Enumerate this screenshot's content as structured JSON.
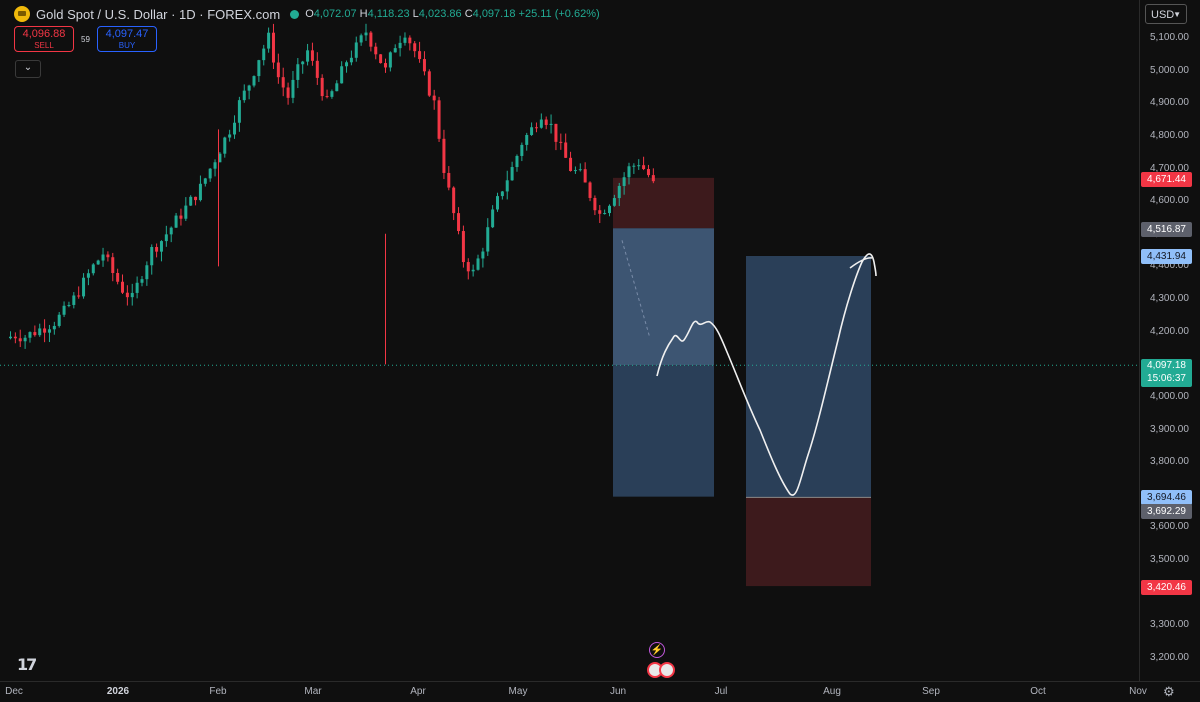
{
  "header": {
    "title": "Gold Spot / U.S. Dollar · 1D · FOREX.com",
    "ohlc": {
      "o_label": "O",
      "o": "4,072.07",
      "h_label": "H",
      "h": "4,118.23",
      "l_label": "L",
      "l": "4,023.86",
      "c_label": "C",
      "c": "4,097.18",
      "change": "+25.11 (+0.62%)"
    }
  },
  "trade": {
    "sell_price": "4,096.88",
    "sell_label": "SELL",
    "spread": "59",
    "buy_price": "4,097.47",
    "buy_label": "BUY"
  },
  "currency": "USD",
  "price_axis": {
    "ticks": [
      "5,100.00",
      "5,000.00",
      "4,900.00",
      "4,800.00",
      "4,700.00",
      "4,600.00",
      "4,500.00",
      "4,400.00",
      "4,300.00",
      "4,200.00",
      "4,000.00",
      "3,900.00",
      "3,800.00",
      "3,600.00",
      "3,500.00",
      "3,300.00",
      "3,200.00"
    ],
    "tags": {
      "stop_high": "4,671.44",
      "entry_left": "4,516.87",
      "target_right": "4,431.94",
      "current_price": "4,097.18",
      "countdown": "15:06:37",
      "target_low": "3,694.46",
      "stop_right": "3,692.29",
      "stop_low": "3,420.46"
    }
  },
  "time_axis": [
    "Dec",
    "2026",
    "Feb",
    "Mar",
    "Apr",
    "May",
    "Jun",
    "Jul",
    "Aug",
    "Sep",
    "Oct",
    "Nov"
  ],
  "colors": {
    "up": "#22ab94",
    "down": "#f23645",
    "bg": "#0f0f0f",
    "profit_zone": "#2a3f58",
    "loss_zone": "#3d1a1c"
  },
  "chart_data": {
    "type": "candlestick",
    "symbol": "XAUUSD",
    "timeframe": "1D",
    "ylim": [
      3150,
      5150
    ],
    "close_path": [
      4180,
      4190,
      4185,
      4200,
      4215,
      4230,
      4260,
      4300,
      4350,
      4400,
      4440,
      4380,
      4330,
      4300,
      4380,
      4450,
      4480,
      4520,
      4560,
      4600,
      4640,
      4700,
      4760,
      4820,
      4900,
      4960,
      5040,
      5100,
      4980,
      4920,
      5000,
      5060,
      4980,
      4900,
      4960,
      5030,
      5070,
      5120,
      5060,
      5000,
      5080,
      5120,
      5060,
      4980,
      4900,
      4700,
      4560,
      4420,
      4380,
      4460,
      4560,
      4640,
      4700,
      4780,
      4820,
      4870,
      4830,
      4760,
      4700,
      4680,
      4620,
      4560,
      4600,
      4650,
      4700,
      4720,
      4680,
      4620,
      4560,
      4520,
      4540,
      4560,
      4500,
      4480,
      4430,
      4360,
      4270,
      4180,
      4097
    ],
    "current_price": 4097.18,
    "positions": [
      {
        "kind": "short",
        "entry": 4516.87,
        "stop": 4671.44,
        "target": 3694.46
      },
      {
        "kind": "long",
        "entry": 3692.29,
        "stop": 3420.46,
        "target": 4431.94
      }
    ]
  }
}
